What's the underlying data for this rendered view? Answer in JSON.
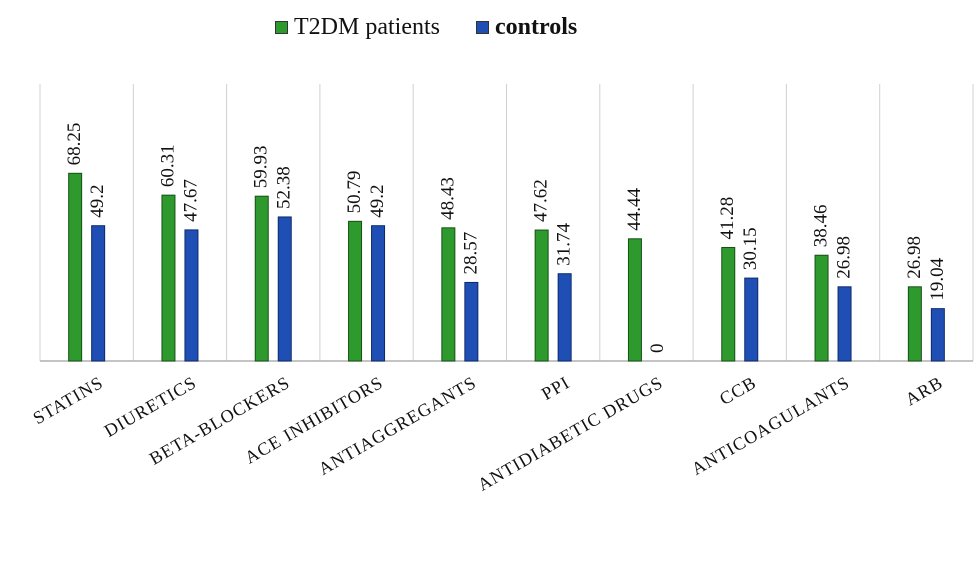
{
  "colors": {
    "t2dm": "#2e9a2e",
    "controls": "#1f4fb5",
    "t2dm_edge": "#145214",
    "controls_edge": "#0c2a6b",
    "grid": "#d0d0d0",
    "axis": "#b0b0b0"
  },
  "chart_data": {
    "type": "bar",
    "title": "",
    "xlabel": "",
    "ylabel": "",
    "ylim": [
      0,
      100
    ],
    "grid": "vertical separators",
    "legend_position": "top-center",
    "categories": [
      "STATINS",
      "DIURETICS",
      "BETA-BLOCKERS",
      "ACE INHIBITORS",
      "ANTIAGGREGANTS",
      "PPI",
      "ANTIDIABETIC DRUGS",
      "CCB",
      "ANTICOAGULANTS",
      "ARB"
    ],
    "series": [
      {
        "name": "T2DM patients",
        "values": [
          68.25,
          60.31,
          59.93,
          50.79,
          48.43,
          47.62,
          44.44,
          41.28,
          38.46,
          26.98
        ],
        "labels": [
          "68.25",
          "60.31",
          "59.93",
          "50.79",
          "48.43",
          "47.62",
          "44.44",
          "41.28",
          "38.46",
          "26.98"
        ]
      },
      {
        "name": "controls",
        "values": [
          49.2,
          47.67,
          52.38,
          49.2,
          28.57,
          31.74,
          0,
          30.15,
          26.98,
          19.04
        ],
        "labels": [
          "49.2",
          "47.67",
          "52.38",
          "49.2",
          "28.57",
          "31.74",
          "0",
          "30.15",
          "26.98",
          "19.04"
        ]
      }
    ]
  }
}
